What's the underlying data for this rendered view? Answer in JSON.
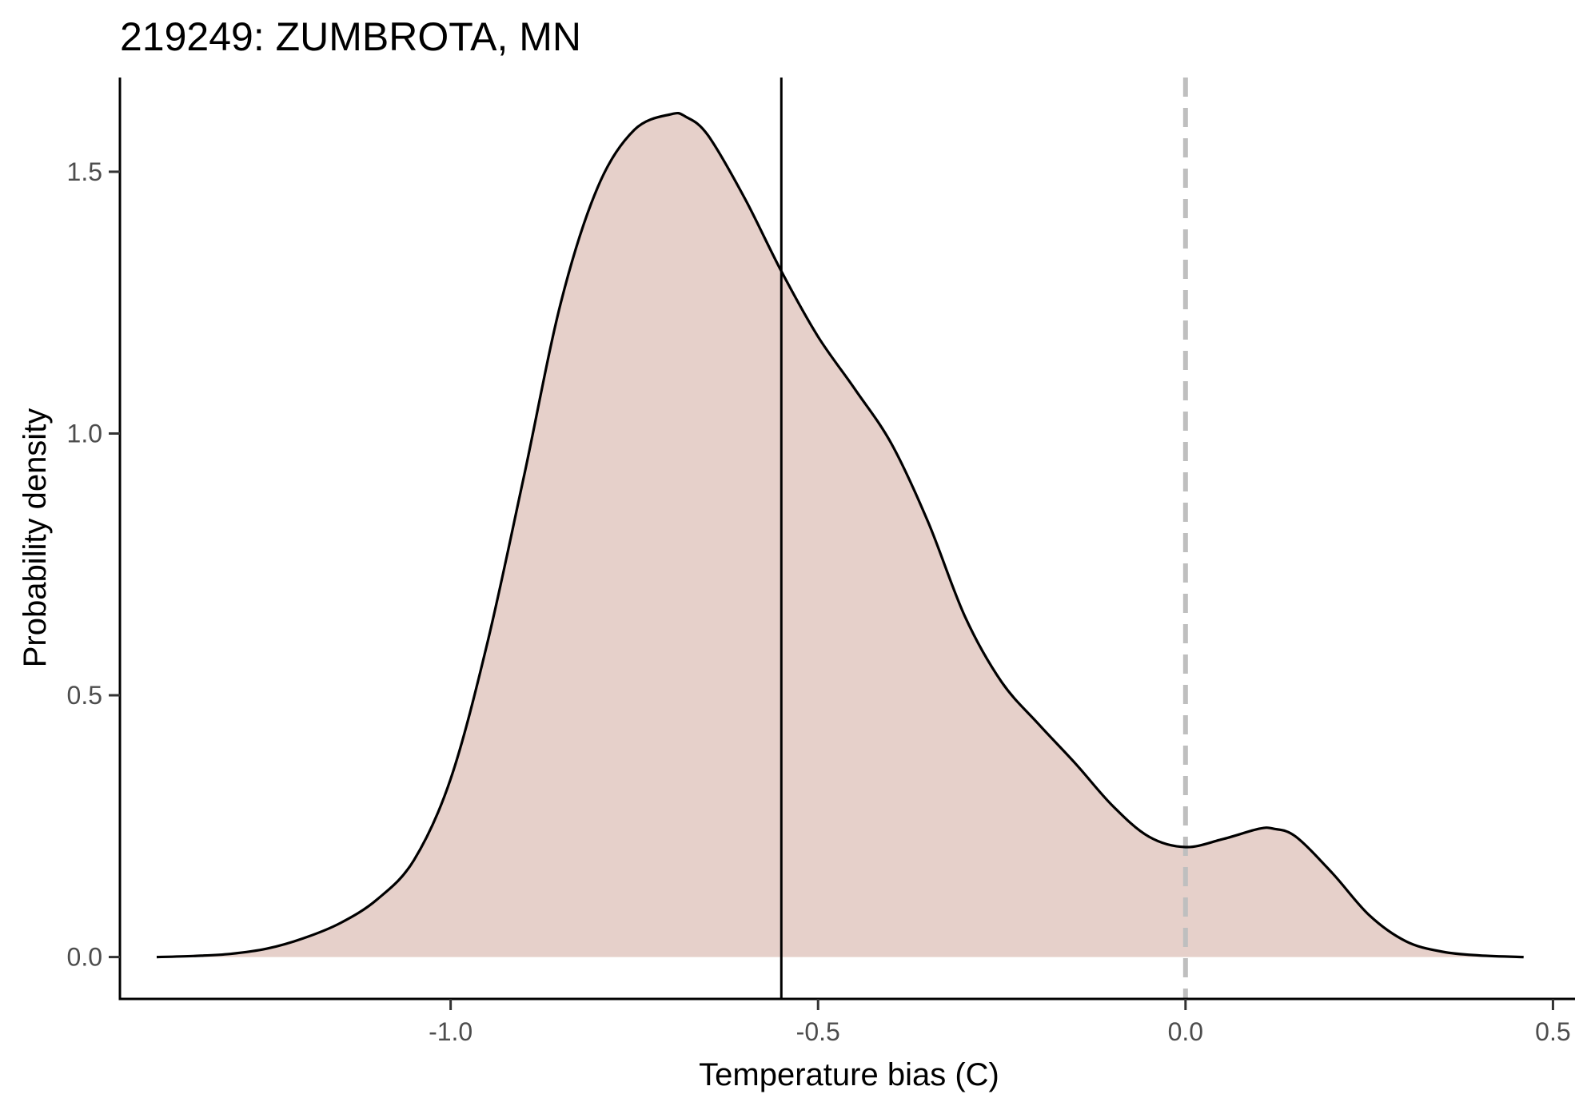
{
  "chart_data": {
    "type": "area",
    "title": "219249: ZUMBROTA, MN",
    "xlabel": "Temperature bias (C)",
    "ylabel": "Probability density",
    "xlim": [
      -1.45,
      0.53
    ],
    "ylim": [
      -0.08,
      1.68
    ],
    "xticks": [
      -1.0,
      -0.5,
      0.0,
      0.5
    ],
    "xtick_labels": [
      "-1.0",
      "-0.5",
      "0.0",
      "0.5"
    ],
    "yticks": [
      0.0,
      0.5,
      1.0,
      1.5
    ],
    "ytick_labels": [
      "0.0",
      "0.5",
      "1.0",
      "1.5"
    ],
    "grid": false,
    "fill_color": "#e6d0ca",
    "line_color": "#000000",
    "reference_lines": [
      {
        "axis": "x",
        "value": -0.55,
        "style": "solid",
        "color": "#000000"
      },
      {
        "axis": "x",
        "value": 0.0,
        "style": "dashed",
        "color": "#bfbfbf"
      }
    ],
    "series": [
      {
        "x": [
          -1.4,
          -1.35,
          -1.3,
          -1.25,
          -1.2,
          -1.15,
          -1.1,
          -1.05,
          -1.0,
          -0.95,
          -0.9,
          -0.85,
          -0.8,
          -0.75,
          -0.7,
          -0.68,
          -0.65,
          -0.6,
          -0.55,
          -0.5,
          -0.45,
          -0.4,
          -0.35,
          -0.3,
          -0.25,
          -0.2,
          -0.15,
          -0.1,
          -0.05,
          0.0,
          0.05,
          0.1,
          0.12,
          0.15,
          0.2,
          0.25,
          0.3,
          0.35,
          0.4,
          0.46
        ],
        "y": [
          0.0,
          0.002,
          0.006,
          0.016,
          0.036,
          0.065,
          0.11,
          0.185,
          0.34,
          0.6,
          0.92,
          1.25,
          1.47,
          1.58,
          1.61,
          1.605,
          1.57,
          1.45,
          1.31,
          1.185,
          1.085,
          0.98,
          0.83,
          0.65,
          0.525,
          0.445,
          0.37,
          0.29,
          0.23,
          0.21,
          0.225,
          0.245,
          0.245,
          0.23,
          0.16,
          0.08,
          0.03,
          0.01,
          0.003,
          0.0
        ]
      }
    ]
  }
}
